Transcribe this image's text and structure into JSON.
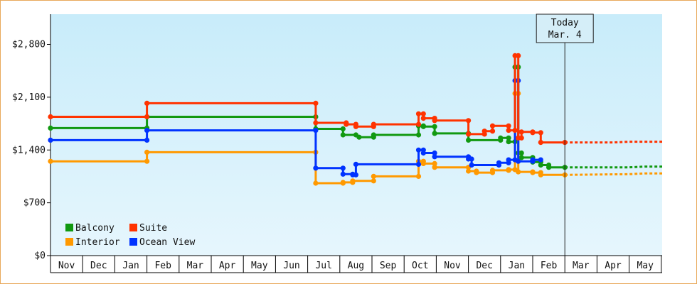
{
  "chart_data": {
    "type": "line",
    "subtype": "step",
    "y_unit": "$",
    "ylim": [
      0,
      3200
    ],
    "y_ticks": [
      "$0",
      "$700",
      "$1,400",
      "$2,100",
      "$2,800"
    ],
    "y_tick_values": [
      0,
      700,
      1400,
      2100,
      2800
    ],
    "months": [
      "Nov",
      "Dec",
      "Jan",
      "Feb",
      "Mar",
      "Apr",
      "May",
      "Jun",
      "Jul",
      "Aug",
      "Sep",
      "Oct",
      "Nov",
      "Dec",
      "Jan",
      "Feb",
      "Mar",
      "Apr",
      "May"
    ],
    "today": {
      "label": "Today",
      "date": "Mar. 4",
      "x": 16.0
    },
    "grid": false,
    "legend_position": "bottom-left",
    "series": [
      {
        "name": "Balcony",
        "color": "#119911",
        "points": [
          [
            0,
            1690
          ],
          [
            3.0,
            1690
          ],
          [
            3.0,
            1840
          ],
          [
            8.25,
            1840
          ],
          [
            8.25,
            1680
          ],
          [
            9.1,
            1680
          ],
          [
            9.1,
            1600
          ],
          [
            9.5,
            1600
          ],
          [
            9.6,
            1570
          ],
          [
            10.05,
            1570
          ],
          [
            10.05,
            1600
          ],
          [
            11.45,
            1600
          ],
          [
            11.45,
            1720
          ],
          [
            11.6,
            1720
          ],
          [
            11.6,
            1710
          ],
          [
            11.95,
            1710
          ],
          [
            11.95,
            1620
          ],
          [
            13.0,
            1620
          ],
          [
            13.0,
            1530
          ],
          [
            14.0,
            1530
          ],
          [
            14.0,
            1560
          ],
          [
            14.25,
            1560
          ],
          [
            14.25,
            1510
          ],
          [
            14.45,
            1510
          ],
          [
            14.45,
            2500
          ],
          [
            14.55,
            2500
          ],
          [
            14.55,
            1360
          ],
          [
            14.65,
            1360
          ],
          [
            14.65,
            1300
          ],
          [
            15.0,
            1300
          ],
          [
            15.0,
            1240
          ],
          [
            15.25,
            1240
          ],
          [
            15.25,
            1200
          ],
          [
            15.5,
            1200
          ],
          [
            15.5,
            1170
          ],
          [
            16.0,
            1170
          ]
        ],
        "projection": [
          [
            16.0,
            1170
          ],
          [
            18.0,
            1170
          ],
          [
            18.5,
            1180
          ],
          [
            19.2,
            1180
          ]
        ]
      },
      {
        "name": "Suite",
        "color": "#ff3300",
        "points": [
          [
            0,
            1840
          ],
          [
            3.0,
            1840
          ],
          [
            3.0,
            2020
          ],
          [
            8.25,
            2020
          ],
          [
            8.25,
            1760
          ],
          [
            9.2,
            1760
          ],
          [
            9.2,
            1740
          ],
          [
            9.5,
            1740
          ],
          [
            9.5,
            1710
          ],
          [
            10.05,
            1710
          ],
          [
            10.05,
            1740
          ],
          [
            11.45,
            1740
          ],
          [
            11.45,
            1880
          ],
          [
            11.6,
            1880
          ],
          [
            11.6,
            1820
          ],
          [
            11.95,
            1820
          ],
          [
            11.95,
            1790
          ],
          [
            13.0,
            1790
          ],
          [
            13.0,
            1610
          ],
          [
            13.5,
            1610
          ],
          [
            13.5,
            1650
          ],
          [
            13.75,
            1650
          ],
          [
            13.75,
            1720
          ],
          [
            14.25,
            1720
          ],
          [
            14.25,
            1660
          ],
          [
            14.45,
            1660
          ],
          [
            14.45,
            2650
          ],
          [
            14.55,
            2650
          ],
          [
            14.55,
            1560
          ],
          [
            14.65,
            1560
          ],
          [
            14.65,
            1640
          ],
          [
            15.0,
            1640
          ],
          [
            15.0,
            1630
          ],
          [
            15.25,
            1630
          ],
          [
            15.25,
            1500
          ],
          [
            16.0,
            1500
          ]
        ],
        "projection": [
          [
            16.0,
            1500
          ],
          [
            17.5,
            1500
          ],
          [
            18.0,
            1510
          ],
          [
            19.2,
            1510
          ]
        ]
      },
      {
        "name": "Interior",
        "color": "#ff9900",
        "points": [
          [
            0,
            1250
          ],
          [
            3.0,
            1250
          ],
          [
            3.0,
            1370
          ],
          [
            8.25,
            1370
          ],
          [
            8.25,
            960
          ],
          [
            9.1,
            960
          ],
          [
            9.1,
            970
          ],
          [
            9.4,
            970
          ],
          [
            9.4,
            990
          ],
          [
            10.05,
            990
          ],
          [
            10.05,
            1050
          ],
          [
            11.45,
            1050
          ],
          [
            11.45,
            1250
          ],
          [
            11.6,
            1250
          ],
          [
            11.6,
            1220
          ],
          [
            11.95,
            1220
          ],
          [
            11.95,
            1170
          ],
          [
            13.0,
            1170
          ],
          [
            13.0,
            1120
          ],
          [
            13.25,
            1120
          ],
          [
            13.25,
            1100
          ],
          [
            13.75,
            1100
          ],
          [
            13.75,
            1130
          ],
          [
            14.25,
            1130
          ],
          [
            14.25,
            1140
          ],
          [
            14.45,
            1140
          ],
          [
            14.45,
            2150
          ],
          [
            14.55,
            2150
          ],
          [
            14.55,
            1110
          ],
          [
            15.0,
            1110
          ],
          [
            15.0,
            1100
          ],
          [
            15.25,
            1100
          ],
          [
            15.25,
            1070
          ],
          [
            16.0,
            1070
          ]
        ],
        "projection": [
          [
            16.0,
            1070
          ],
          [
            18.0,
            1080
          ],
          [
            18.5,
            1090
          ],
          [
            19.2,
            1090
          ]
        ]
      },
      {
        "name": "Ocean View",
        "color": "#0033ff",
        "points": [
          [
            0,
            1530
          ],
          [
            3.0,
            1530
          ],
          [
            3.0,
            1660
          ],
          [
            8.25,
            1660
          ],
          [
            8.25,
            1160
          ],
          [
            9.1,
            1160
          ],
          [
            9.1,
            1080
          ],
          [
            9.4,
            1080
          ],
          [
            9.4,
            1070
          ],
          [
            9.5,
            1070
          ],
          [
            9.5,
            1210
          ],
          [
            11.45,
            1210
          ],
          [
            11.45,
            1400
          ],
          [
            11.6,
            1400
          ],
          [
            11.6,
            1360
          ],
          [
            11.95,
            1360
          ],
          [
            11.95,
            1310
          ],
          [
            13.0,
            1310
          ],
          [
            13.0,
            1280
          ],
          [
            13.1,
            1280
          ],
          [
            13.1,
            1200
          ],
          [
            13.95,
            1200
          ],
          [
            13.95,
            1230
          ],
          [
            14.25,
            1230
          ],
          [
            14.25,
            1270
          ],
          [
            14.45,
            1270
          ],
          [
            14.45,
            2320
          ],
          [
            14.55,
            2320
          ],
          [
            14.55,
            1250
          ],
          [
            15.0,
            1250
          ],
          [
            15.0,
            1270
          ],
          [
            15.25,
            1270
          ]
        ],
        "projection": []
      }
    ],
    "legend": [
      {
        "name": "Balcony",
        "color": "#119911"
      },
      {
        "name": "Suite",
        "color": "#ff3300"
      },
      {
        "name": "Interior",
        "color": "#ff9900"
      },
      {
        "name": "Ocean View",
        "color": "#0033ff"
      }
    ]
  }
}
